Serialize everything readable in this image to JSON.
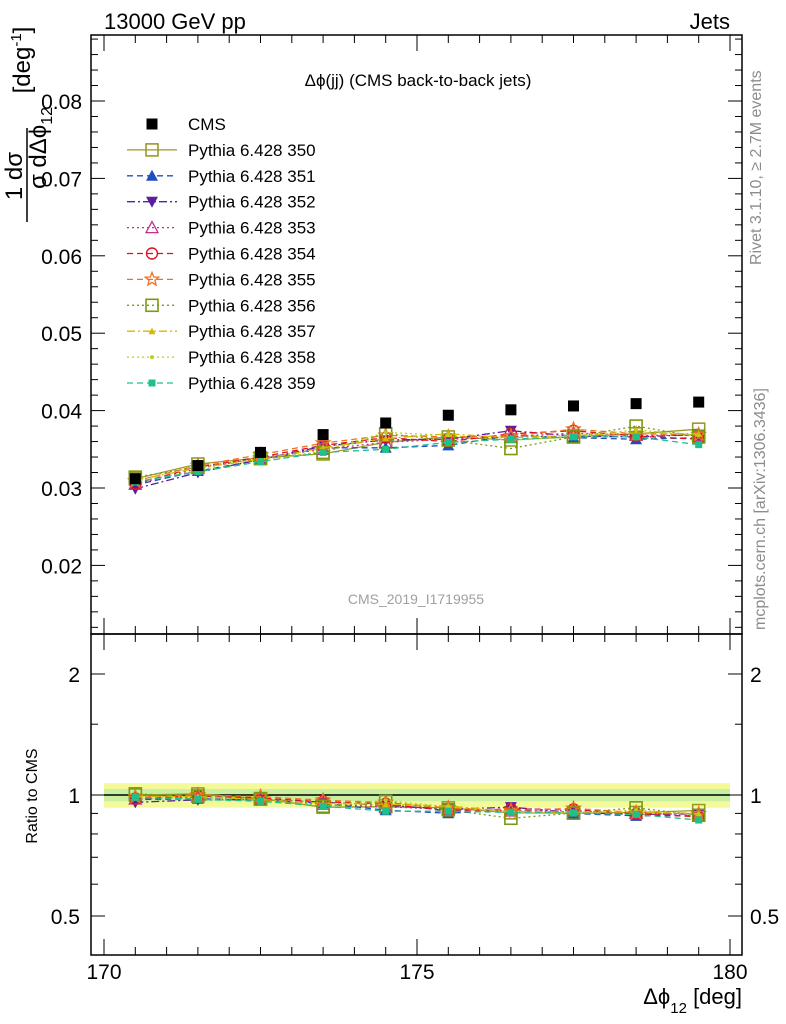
{
  "header": {
    "left": "13000 GeV pp",
    "right": "Jets"
  },
  "side_labels": {
    "top": "Rivet 3.1.10, ≥ 2.7M events",
    "bottom": "mcplots.cern.ch [arXiv:1306.3436]"
  },
  "watermark": "CMS_2019_I1719955",
  "chart_data": [
    {
      "type": "scatter",
      "title": "Δϕ(jj) (CMS back-to-back jets)",
      "ylabel": "1/σ dσ/dΔϕ_12 [deg⁻¹]",
      "xlabel": "",
      "xlim": [
        170,
        180
      ],
      "ylim": [
        0.012,
        0.088
      ],
      "yticks": [
        "0.02",
        "0.03",
        "0.04",
        "0.05",
        "0.06",
        "0.07",
        "0.08"
      ],
      "ytick_values": [
        0.02,
        0.03,
        0.04,
        0.05,
        0.06,
        0.07,
        0.08
      ],
      "legend": "top-left",
      "x": [
        170.5,
        171.5,
        172.5,
        173.5,
        174.5,
        175.5,
        176.5,
        177.5,
        178.5,
        179.5
      ],
      "series": [
        {
          "name": "CMS",
          "color": "#000000",
          "marker": "square-filled",
          "line": "none",
          "values": [
            0.0312,
            0.0329,
            0.0346,
            0.0369,
            0.0384,
            0.0394,
            0.0401,
            0.0406,
            0.0409,
            0.0411
          ]
        },
        {
          "name": "Pythia 6.428 350",
          "color": "#9a9a2a",
          "marker": "square-open",
          "line": "solid",
          "values": [
            0.0312,
            0.0331,
            0.0339,
            0.0344,
            0.0359,
            0.0366,
            0.0362,
            0.0366,
            0.037,
            0.0376
          ]
        },
        {
          "name": "Pythia 6.428 351",
          "color": "#1f4fbf",
          "marker": "triangle-up-filled",
          "line": "dashed",
          "values": [
            0.0304,
            0.0322,
            0.0336,
            0.0352,
            0.0352,
            0.0355,
            0.0368,
            0.0365,
            0.0363,
            0.0365
          ]
        },
        {
          "name": "Pythia 6.428 352",
          "color": "#5a1fa0",
          "marker": "triangle-down-filled",
          "line": "dashdot",
          "values": [
            0.0299,
            0.032,
            0.0337,
            0.0354,
            0.0362,
            0.0363,
            0.0374,
            0.0367,
            0.0366,
            0.0369
          ]
        },
        {
          "name": "Pythia 6.428 353",
          "color": "#c0308a",
          "marker": "triangle-up-open",
          "line": "dotted",
          "values": [
            0.0305,
            0.0325,
            0.0339,
            0.035,
            0.0359,
            0.0363,
            0.0366,
            0.0371,
            0.0368,
            0.0368
          ]
        },
        {
          "name": "Pythia 6.428 354",
          "color": "#e01020",
          "marker": "circle-open",
          "line": "dashed",
          "values": [
            0.0306,
            0.0327,
            0.034,
            0.0355,
            0.0365,
            0.036,
            0.037,
            0.0374,
            0.0367,
            0.0363
          ]
        },
        {
          "name": "Pythia 6.428 355",
          "color": "#f07020",
          "marker": "star-open",
          "line": "dashed",
          "values": [
            0.0309,
            0.0329,
            0.0343,
            0.0358,
            0.0368,
            0.0366,
            0.0367,
            0.0376,
            0.037,
            0.0369
          ]
        },
        {
          "name": "Pythia 6.428 356",
          "color": "#7a9a10",
          "marker": "square-open",
          "line": "dotted",
          "values": [
            0.0314,
            0.0327,
            0.0338,
            0.0346,
            0.037,
            0.0362,
            0.0351,
            0.0366,
            0.038,
            0.0366
          ]
        },
        {
          "name": "Pythia 6.428 357",
          "color": "#d8b800",
          "marker": "tri-small",
          "line": "dashdot",
          "values": [
            0.031,
            0.0326,
            0.0337,
            0.0352,
            0.0364,
            0.037,
            0.0365,
            0.0368,
            0.0371,
            0.037
          ]
        },
        {
          "name": "Pythia 6.428 358",
          "color": "#b8d020",
          "marker": "dot-small",
          "line": "dotted",
          "values": [
            0.0308,
            0.0322,
            0.0334,
            0.0348,
            0.0372,
            0.0368,
            0.0362,
            0.0366,
            0.0375,
            0.0368
          ]
        },
        {
          "name": "Pythia 6.428 359",
          "color": "#20c08a",
          "marker": "square-small-filled",
          "line": "dashed",
          "values": [
            0.0308,
            0.0321,
            0.0334,
            0.0346,
            0.035,
            0.0359,
            0.0363,
            0.0366,
            0.0366,
            0.0356
          ]
        }
      ]
    },
    {
      "type": "scatter",
      "title": "",
      "ylabel": "Ratio to CMS",
      "xlabel": "Δϕ_12 [deg]",
      "xlim": [
        170,
        180
      ],
      "ylim": [
        0.43,
        2.35
      ],
      "ytick_labels": [
        "0.5",
        "1",
        "2"
      ],
      "ytick_values": [
        0.5,
        1,
        2
      ],
      "xtick_labels": [
        "170",
        "175",
        "180"
      ],
      "xtick_values": [
        170,
        175,
        180
      ],
      "reference": 1.0,
      "band_outer": 0.07,
      "band_inner": 0.035
    }
  ]
}
